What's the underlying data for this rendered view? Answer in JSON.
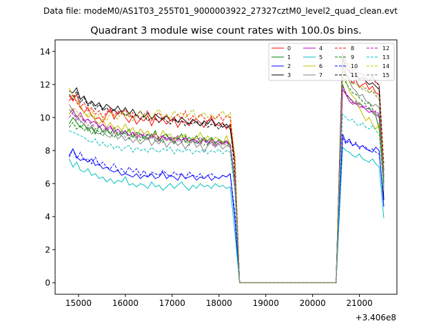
{
  "page_title": "Data file: modeM0/AS1T03_255T01_9000003922_27327cztM0_level2_quad_clean.evt",
  "chart_data": {
    "type": "line",
    "title": "Quadrant 3 module wise count rates with 100.0s bins.",
    "xlabel": "",
    "ylabel": "",
    "x_offset_label": "+3.406e8",
    "xlim": [
      14500,
      21800
    ],
    "ylim": [
      -0.7,
      14.7
    ],
    "x_ticks": [
      15000,
      16000,
      17000,
      18000,
      19000,
      20000,
      21000
    ],
    "x_tick_labels": [
      "15000",
      "16000",
      "17000",
      "18000",
      "19000",
      "20000",
      "21000"
    ],
    "y_ticks": [
      0,
      2,
      4,
      6,
      8,
      10,
      12,
      14
    ],
    "y_tick_labels": [
      "0",
      "2",
      "4",
      "6",
      "8",
      "10",
      "12",
      "14"
    ],
    "grid": false,
    "legend_position": "top-right",
    "legend_columns": 4,
    "series": [
      {
        "name": "0",
        "color": "#ff0000",
        "dash": "solid",
        "y": [
          11.3,
          11.0,
          11.4,
          10.6,
          10.3,
          10.6,
          10.1,
          9.9,
          10.0,
          9.7,
          10.2,
          10.5,
          9.9,
          10.3,
          10.4,
          10.0,
          9.7,
          10.1,
          9.6,
          9.9,
          9.8,
          10.1,
          9.5,
          10.0,
          9.7,
          9.9,
          9.6,
          9.8,
          9.9,
          9.4,
          9.8,
          9.7,
          9.5,
          9.8,
          9.9,
          9.7,
          9.4,
          9.8,
          10.0,
          9.6,
          9.5,
          9.7,
          9.3,
          9.6
        ],
        "end": [
          13.3,
          12.6,
          12.4,
          12.1,
          12.3,
          11.8,
          12.0,
          12.1,
          11.7,
          11.9,
          11.5,
          11.4
        ]
      },
      {
        "name": "1",
        "color": "#008000",
        "dash": "solid",
        "y": [
          9.6,
          10.0,
          9.7,
          9.4,
          9.6,
          9.2,
          9.4,
          9.0,
          9.5,
          9.1,
          9.3,
          9.0,
          9.4,
          8.9,
          9.2,
          9.0,
          9.3,
          8.8,
          9.1,
          9.0,
          8.7,
          9.0,
          8.8,
          9.2,
          8.6,
          8.9,
          9.0,
          8.6,
          8.8,
          8.7,
          9.0,
          8.5,
          8.8,
          8.6,
          8.9,
          8.5,
          8.7,
          8.6,
          8.8,
          8.4,
          8.7,
          8.5,
          8.6,
          8.4
        ],
        "end": [
          12.0,
          11.4,
          11.2,
          11.0,
          10.8,
          10.9,
          10.7,
          10.5,
          10.6,
          10.3,
          10.1,
          9.3
        ]
      },
      {
        "name": "2",
        "color": "#0000ff",
        "dash": "solid",
        "y": [
          7.7,
          8.1,
          7.6,
          7.4,
          7.5,
          7.3,
          7.5,
          7.1,
          7.2,
          6.9,
          7.0,
          6.8,
          6.7,
          6.8,
          6.5,
          6.6,
          6.5,
          6.4,
          6.6,
          6.3,
          6.5,
          6.4,
          6.6,
          6.3,
          6.4,
          6.7,
          6.3,
          6.5,
          6.4,
          6.2,
          6.6,
          6.3,
          6.4,
          6.5,
          6.2,
          6.4,
          6.3,
          6.5,
          6.2,
          6.4,
          6.3,
          6.5,
          6.4,
          6.6
        ],
        "end": [
          9.0,
          8.5,
          8.7,
          8.3,
          8.4,
          8.2,
          8.3,
          8.1,
          8.0,
          7.9,
          8.2,
          8.0
        ]
      },
      {
        "name": "3",
        "color": "#000000",
        "dash": "solid",
        "y": [
          11.6,
          11.5,
          11.8,
          11.1,
          11.3,
          10.8,
          11.0,
          10.7,
          10.9,
          10.5,
          10.8,
          10.6,
          10.4,
          10.7,
          10.3,
          10.6,
          10.2,
          10.5,
          10.1,
          10.4,
          10.0,
          10.3,
          9.9,
          10.2,
          10.0,
          9.9,
          10.1,
          9.8,
          10.0,
          9.7,
          10.0,
          9.8,
          9.6,
          9.9,
          9.7,
          9.5,
          9.8,
          9.6,
          9.9,
          9.5,
          9.7,
          9.4,
          9.6,
          9.3
        ],
        "end": [
          13.6,
          13.0,
          12.8,
          12.5,
          12.6,
          12.3,
          12.4,
          12.2,
          12.0,
          12.1,
          11.9,
          11.7
        ]
      },
      {
        "name": "4",
        "color": "#bf00bf",
        "dash": "solid",
        "y": [
          10.2,
          10.5,
          10.0,
          10.3,
          9.8,
          9.9,
          9.7,
          9.8,
          9.4,
          9.6,
          9.3,
          9.5,
          9.1,
          9.3,
          9.0,
          9.2,
          8.9,
          9.1,
          8.8,
          9.0,
          8.9,
          8.7,
          9.0,
          8.8,
          8.6,
          8.9,
          8.7,
          8.8,
          8.5,
          8.7,
          8.6,
          8.8,
          8.5,
          8.7,
          8.6,
          8.4,
          8.7,
          8.5,
          8.6,
          8.3,
          8.5,
          8.4,
          8.6,
          8.3
        ],
        "end": [
          11.7,
          11.4,
          11.0,
          10.8,
          10.9,
          10.6,
          10.7,
          10.5,
          10.3,
          10.4,
          10.2,
          10.0
        ]
      },
      {
        "name": "5",
        "color": "#00bfbf",
        "dash": "solid",
        "y": [
          7.5,
          7.0,
          7.3,
          6.8,
          6.7,
          6.9,
          6.5,
          6.6,
          6.3,
          6.4,
          6.1,
          6.3,
          6.0,
          6.2,
          6.1,
          6.4,
          5.9,
          6.0,
          5.8,
          6.0,
          5.9,
          5.7,
          6.1,
          5.8,
          5.9,
          5.6,
          5.8,
          6.0,
          5.7,
          5.9,
          6.1,
          5.8,
          5.6,
          5.9,
          5.7,
          6.0,
          5.8,
          5.9,
          5.7,
          6.0,
          5.8,
          5.9,
          5.7,
          5.8
        ],
        "end": [
          8.2,
          8.0,
          7.9,
          7.7,
          7.6,
          7.8,
          7.5,
          7.4,
          7.3,
          7.5,
          7.2,
          7.0
        ]
      },
      {
        "name": "6",
        "color": "#bfbf00",
        "dash": "solid",
        "y": [
          11.8,
          11.3,
          11.0,
          10.7,
          10.3,
          10.0,
          10.2,
          9.8,
          9.6,
          9.9,
          9.4,
          9.7,
          9.3,
          9.5,
          9.2,
          9.6,
          9.1,
          9.4,
          8.9,
          9.3,
          9.0,
          9.2,
          8.8,
          9.1,
          8.7,
          9.2,
          8.9,
          9.0,
          8.6,
          8.9,
          8.8,
          9.0,
          8.5,
          8.8,
          8.7,
          9.1,
          8.6,
          8.9,
          8.5,
          8.8,
          8.7,
          8.4,
          8.9,
          8.3
        ],
        "end": [
          12.8,
          12.3,
          11.6,
          11.3,
          11.1,
          10.6,
          10.2,
          9.8,
          10.0,
          9.6,
          9.3,
          9.6
        ]
      },
      {
        "name": "7",
        "color": "#7f7f7f",
        "dash": "solid",
        "y": [
          10.8,
          10.4,
          10.1,
          9.8,
          9.6,
          9.3,
          9.5,
          9.1,
          9.0,
          9.2,
          8.9,
          8.8,
          9.1,
          8.7,
          8.9,
          8.6,
          8.8,
          8.5,
          8.7,
          8.4,
          8.6,
          8.8,
          8.3,
          8.6,
          8.4,
          8.7,
          8.2,
          8.5,
          8.6,
          8.3,
          8.5,
          8.1,
          8.4,
          8.6,
          8.2,
          8.4,
          7.9,
          8.3,
          8.5,
          8.2,
          8.4,
          8.1,
          8.3,
          8.2
        ],
        "end": [
          13.0,
          12.6,
          12.2,
          11.8,
          11.6,
          11.3,
          11.4,
          11.0,
          10.9,
          10.7,
          10.8,
          10.6
        ]
      },
      {
        "name": "8",
        "color": "#ff0000",
        "dash": "dashed",
        "y": [
          11.0,
          11.4,
          10.9,
          10.6,
          10.9,
          10.4,
          10.6,
          10.2,
          10.4,
          10.0,
          10.3,
          10.6,
          10.1,
          10.4,
          10.2,
          10.5,
          10.0,
          10.3,
          10.1,
          9.9,
          10.2,
          10.4,
          9.8,
          10.1,
          10.3,
          9.9,
          10.2,
          9.8,
          10.0,
          10.2,
          9.9,
          10.4,
          9.8,
          10.1,
          9.9,
          10.2,
          10.0,
          9.7,
          10.1,
          9.9,
          10.2,
          9.8,
          10.1,
          10.0
        ],
        "end": [
          13.8,
          13.2,
          12.9,
          12.6,
          12.7,
          12.4,
          12.5,
          12.3,
          12.2,
          12.4,
          12.1,
          12.0
        ]
      },
      {
        "name": "9",
        "color": "#008000",
        "dash": "dashed",
        "y": [
          9.4,
          9.7,
          9.3,
          9.5,
          9.2,
          9.4,
          9.0,
          9.3,
          9.1,
          8.9,
          9.2,
          9.0,
          8.8,
          9.1,
          8.9,
          9.2,
          8.7,
          9.0,
          8.8,
          8.6,
          8.9,
          8.7,
          9.0,
          8.6,
          8.8,
          8.5,
          8.9,
          8.7,
          8.4,
          8.8,
          8.6,
          8.9,
          8.5,
          8.7,
          8.4,
          8.6,
          8.8,
          8.3,
          8.7,
          8.5,
          8.6,
          8.4,
          8.5,
          8.3
        ],
        "end": [
          12.5,
          12.1,
          11.8,
          11.5,
          11.4,
          11.2,
          11.0,
          10.8,
          10.9,
          10.5,
          10.3,
          10.1
        ]
      },
      {
        "name": "10",
        "color": "#0000ff",
        "dash": "dashed",
        "y": [
          7.6,
          8.1,
          7.5,
          7.9,
          7.4,
          7.5,
          7.2,
          7.6,
          7.1,
          7.3,
          7.0,
          6.9,
          7.2,
          6.8,
          6.9,
          6.6,
          7.0,
          6.7,
          6.9,
          6.5,
          6.8,
          6.4,
          6.7,
          6.6,
          6.5,
          6.8,
          6.6,
          6.4,
          6.7,
          6.5,
          6.6,
          6.3,
          6.7,
          6.5,
          6.4,
          6.6,
          6.3,
          6.5,
          6.6,
          6.4,
          6.3,
          6.5,
          6.4,
          6.6
        ],
        "end": [
          8.8,
          8.4,
          8.6,
          8.3,
          8.5,
          8.1,
          8.3,
          8.2,
          8.0,
          8.1,
          7.9,
          7.8
        ]
      },
      {
        "name": "11",
        "color": "#000000",
        "dash": "dashed",
        "y": [
          11.4,
          11.1,
          11.6,
          10.9,
          11.2,
          10.7,
          10.9,
          10.5,
          10.8,
          10.4,
          10.6,
          10.3,
          10.5,
          10.2,
          10.4,
          10.1,
          10.3,
          10.0,
          10.2,
          9.9,
          10.1,
          9.8,
          10.0,
          9.9,
          9.7,
          10.0,
          9.8,
          9.6,
          9.9,
          9.7,
          9.8,
          9.5,
          9.7,
          9.6,
          9.8,
          9.5,
          9.7,
          9.4,
          9.6,
          9.5,
          9.3,
          9.6,
          9.4,
          9.5
        ],
        "end": [
          13.9,
          13.4,
          13.1,
          12.8,
          12.9,
          12.6,
          12.7,
          12.4,
          12.3,
          12.5,
          12.2,
          11.9
        ]
      },
      {
        "name": "12",
        "color": "#bf00bf",
        "dash": "dashed",
        "y": [
          10.0,
          10.3,
          9.8,
          10.1,
          9.7,
          9.9,
          9.5,
          9.7,
          9.4,
          9.6,
          9.2,
          9.4,
          9.1,
          9.3,
          9.0,
          9.2,
          8.9,
          9.1,
          9.0,
          8.8,
          9.0,
          8.9,
          8.7,
          9.0,
          8.8,
          8.9,
          8.6,
          8.8,
          8.7,
          8.9,
          8.5,
          8.8,
          8.6,
          8.7,
          8.5,
          8.8,
          8.6,
          8.4,
          8.7,
          8.5,
          8.6,
          8.4,
          8.5,
          8.3
        ],
        "end": [
          11.9,
          11.5,
          11.2,
          10.9,
          11.0,
          10.8,
          10.6,
          10.7,
          10.5,
          10.3,
          10.4,
          10.2
        ]
      },
      {
        "name": "13",
        "color": "#00bfbf",
        "dash": "dashed",
        "y": [
          9.2,
          9.1,
          9.0,
          8.9,
          8.8,
          8.6,
          8.5,
          8.7,
          8.3,
          8.5,
          8.2,
          8.4,
          8.1,
          8.3,
          8.0,
          8.2,
          8.3,
          7.9,
          8.2,
          8.0,
          8.1,
          7.9,
          8.2,
          8.0,
          7.9,
          8.1,
          8.0,
          8.2,
          7.8,
          8.1,
          7.9,
          8.0,
          8.1,
          7.8,
          8.0,
          7.9,
          8.1,
          7.8,
          8.0,
          7.9,
          8.1,
          7.8,
          8.0,
          7.9
        ],
        "end": [
          10.2,
          10.0,
          9.8,
          9.9,
          9.6,
          9.5,
          9.7,
          9.4,
          9.3,
          9.5,
          9.2,
          9.0
        ]
      },
      {
        "name": "14",
        "color": "#bfbf00",
        "dash": "dashed",
        "y": [
          10.2,
          10.6,
          10.4,
          10.0,
          10.3,
          10.1,
          10.5,
          9.9,
          10.2,
          10.0,
          9.8,
          10.3,
          10.1,
          9.9,
          10.4,
          10.0,
          10.3,
          9.8,
          10.1,
          10.4,
          10.0,
          10.2,
          9.9,
          10.3,
          10.5,
          10.0,
          10.2,
          9.9,
          10.4,
          10.1,
          10.3,
          10.0,
          10.2,
          10.5,
          9.9,
          10.1,
          10.3,
          10.0,
          10.2,
          9.9,
          10.1,
          10.4,
          10.0,
          10.3
        ],
        "end": [
          12.9,
          12.5,
          12.3,
          12.0,
          12.1,
          11.8,
          11.9,
          11.6,
          11.5,
          11.7,
          11.4,
          11.2
        ]
      },
      {
        "name": "15",
        "color": "#7f7f7f",
        "dash": "dashed",
        "y": [
          10.5,
          10.2,
          10.0,
          9.7,
          9.9,
          9.5,
          9.7,
          9.3,
          9.5,
          9.2,
          9.4,
          9.0,
          9.2,
          8.9,
          9.1,
          8.8,
          9.0,
          8.9,
          8.7,
          9.0,
          8.8,
          8.6,
          8.9,
          8.7,
          8.5,
          8.8,
          8.6,
          8.7,
          8.4,
          8.6,
          8.5,
          8.7,
          8.3,
          8.6,
          8.4,
          8.5,
          8.3,
          8.6,
          8.4,
          8.2,
          8.5,
          8.3,
          8.4,
          8.2
        ],
        "end": [
          13.1,
          12.7,
          12.4,
          12.0,
          12.2,
          11.9,
          11.7,
          11.8,
          11.5,
          11.6,
          11.3,
          11.1
        ]
      }
    ],
    "x_start": 14800,
    "x_step": 80,
    "gap_x_start": 18440,
    "gap_x_end": 20500,
    "resume_x_start": 20640,
    "drop_to_zero_x": 18440,
    "pre_gap_drop_x": 18340,
    "end_x": 21520,
    "end_values": [
      6.4,
      5.8,
      4.6,
      5.0,
      6.0,
      3.9,
      5.5,
      6.1,
      7.2,
      6.0,
      5.0,
      6.8,
      6.5,
      5.6,
      6.9,
      6.3
    ]
  }
}
